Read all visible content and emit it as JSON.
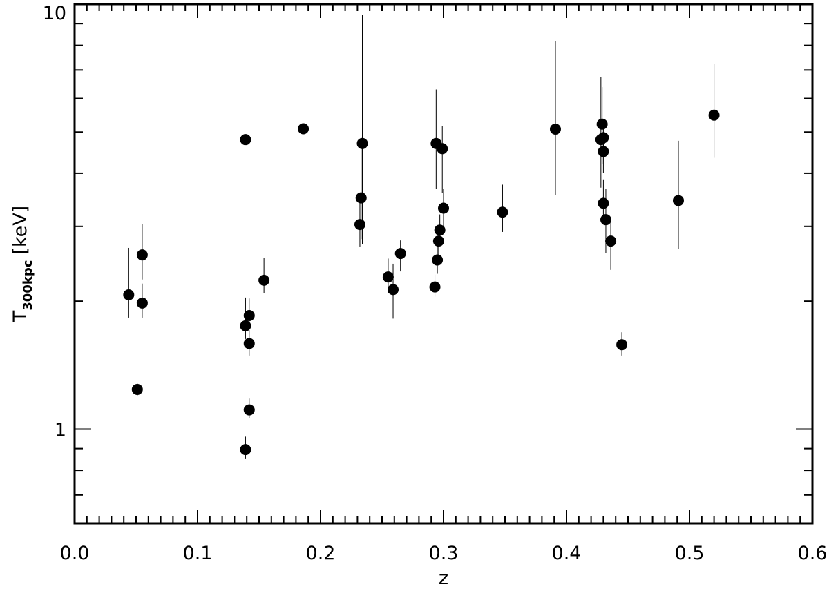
{
  "chart_data": {
    "type": "scatter",
    "title": "",
    "xlabel": "z",
    "ylabel": {
      "main": "T",
      "subscript": "300kpc",
      "unit": "[keV]"
    },
    "xlim": [
      0.0,
      0.6
    ],
    "ylim": [
      0.6,
      10
    ],
    "y_scale": "log",
    "grid": false,
    "legend": "none",
    "x_ticks": [
      "0.0",
      "0.1",
      "0.2",
      "0.3",
      "0.4",
      "0.5",
      "0.6"
    ],
    "y_ticks": [
      "1",
      "10"
    ],
    "colors": {
      "marker": "#000000",
      "errorbar": "#000000",
      "axes": "#000000"
    },
    "points": [
      {
        "x": 0.044,
        "y": 2.07,
        "y_low": 1.83,
        "y_high": 2.67
      },
      {
        "x": 0.051,
        "y": 1.24,
        "y_low": 1.2,
        "y_high": 1.28
      },
      {
        "x": 0.055,
        "y": 2.57,
        "y_low": 2.25,
        "y_high": 3.04
      },
      {
        "x": 0.055,
        "y": 1.98,
        "y_low": 1.83,
        "y_high": 2.2
      },
      {
        "x": 0.139,
        "y": 4.8,
        "y_low": 4.7,
        "y_high": 4.9
      },
      {
        "x": 0.139,
        "y": 1.75,
        "y_low": 1.63,
        "y_high": 2.04
      },
      {
        "x": 0.139,
        "y": 0.895,
        "y_low": 0.85,
        "y_high": 0.96
      },
      {
        "x": 0.142,
        "y": 1.85,
        "y_low": 1.72,
        "y_high": 2.03
      },
      {
        "x": 0.142,
        "y": 1.59,
        "y_low": 1.49,
        "y_high": 1.71
      },
      {
        "x": 0.142,
        "y": 1.11,
        "y_low": 1.06,
        "y_high": 1.18
      },
      {
        "x": 0.154,
        "y": 2.24,
        "y_low": 2.09,
        "y_high": 2.53
      },
      {
        "x": 0.186,
        "y": 5.09,
        "y_low": 5.0,
        "y_high": 5.2
      },
      {
        "x": 0.232,
        "y": 3.03,
        "y_low": 2.69,
        "y_high": 3.5
      },
      {
        "x": 0.233,
        "y": 3.5,
        "y_low": 2.8,
        "y_high": 4.57
      },
      {
        "x": 0.234,
        "y": 4.7,
        "y_low": 2.72,
        "y_high": 9.45
      },
      {
        "x": 0.255,
        "y": 2.28,
        "y_low": 2.09,
        "y_high": 2.52
      },
      {
        "x": 0.259,
        "y": 2.13,
        "y_low": 1.82,
        "y_high": 2.45
      },
      {
        "x": 0.265,
        "y": 2.59,
        "y_low": 2.35,
        "y_high": 2.78
      },
      {
        "x": 0.293,
        "y": 2.16,
        "y_low": 2.05,
        "y_high": 2.31
      },
      {
        "x": 0.294,
        "y": 4.7,
        "y_low": 3.67,
        "y_high": 6.3
      },
      {
        "x": 0.295,
        "y": 2.5,
        "y_low": 2.32,
        "y_high": 2.72
      },
      {
        "x": 0.296,
        "y": 2.77,
        "y_low": 2.56,
        "y_high": 3.01
      },
      {
        "x": 0.297,
        "y": 2.94,
        "y_low": 2.72,
        "y_high": 3.2
      },
      {
        "x": 0.299,
        "y": 4.57,
        "y_low": 3.6,
        "y_high": 5.17
      },
      {
        "x": 0.3,
        "y": 3.31,
        "y_low": 3.0,
        "y_high": 3.67
      },
      {
        "x": 0.348,
        "y": 3.24,
        "y_low": 2.91,
        "y_high": 3.76
      },
      {
        "x": 0.391,
        "y": 5.08,
        "y_low": 3.55,
        "y_high": 8.2
      },
      {
        "x": 0.428,
        "y": 4.8,
        "y_low": 3.7,
        "y_high": 6.75
      },
      {
        "x": 0.429,
        "y": 5.22,
        "y_low": 4.2,
        "y_high": 6.38
      },
      {
        "x": 0.43,
        "y": 4.85,
        "y_low": 4.6,
        "y_high": 5.2
      },
      {
        "x": 0.43,
        "y": 4.5,
        "y_low": 4.0,
        "y_high": 5.0
      },
      {
        "x": 0.43,
        "y": 3.4,
        "y_low": 3.12,
        "y_high": 3.87
      },
      {
        "x": 0.432,
        "y": 3.11,
        "y_low": 2.6,
        "y_high": 3.67
      },
      {
        "x": 0.436,
        "y": 2.77,
        "y_low": 2.37,
        "y_high": 3.06
      },
      {
        "x": 0.445,
        "y": 1.58,
        "y_low": 1.49,
        "y_high": 1.69
      },
      {
        "x": 0.491,
        "y": 3.45,
        "y_low": 2.66,
        "y_high": 4.77
      },
      {
        "x": 0.52,
        "y": 5.48,
        "y_low": 4.35,
        "y_high": 7.25
      }
    ]
  }
}
